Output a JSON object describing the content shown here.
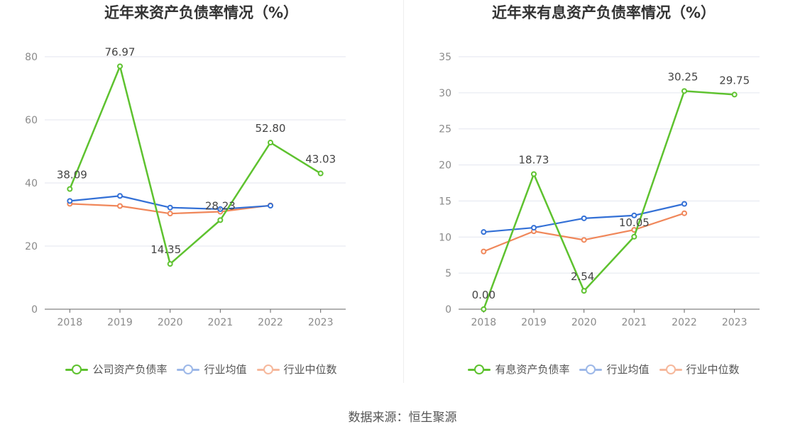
{
  "charts": [
    {
      "title": "近年来资产负债率情况（%）",
      "legend": [
        "公司资产负债率",
        "行业均值",
        "行业中位数"
      ]
    },
    {
      "title": "近年来有息资产负债率情况（%）",
      "legend": [
        "有息资产负债率",
        "行业均值",
        "行业中位数"
      ]
    }
  ],
  "source": "数据来源：恒生聚源",
  "colors": {
    "company": "#5ec22f",
    "mean": "#3370d6",
    "median": "#f0875a"
  },
  "chart_data": [
    {
      "type": "line",
      "title": "近年来资产负债率情况（%）",
      "categories": [
        "2018",
        "2019",
        "2020",
        "2021",
        "2022",
        "2023"
      ],
      "ylim": [
        0,
        80
      ],
      "yticks": [
        0,
        20,
        40,
        60,
        80
      ],
      "grid": true,
      "legend_position": "bottom",
      "series": [
        {
          "name": "公司资产负债率",
          "color": "#5ec22f",
          "values": [
            38.09,
            76.97,
            14.35,
            28.23,
            52.8,
            43.03
          ],
          "labels": [
            "38.09",
            "76.97",
            "14.35",
            "28.23",
            "52.80",
            "43.03"
          ]
        },
        {
          "name": "行业均值",
          "color": "#3370d6",
          "values": [
            34.3,
            35.9,
            32.2,
            31.7,
            32.8,
            null
          ]
        },
        {
          "name": "行业中位数",
          "color": "#f0875a",
          "values": [
            33.4,
            32.7,
            30.3,
            30.9,
            32.9,
            null
          ]
        }
      ]
    },
    {
      "type": "line",
      "title": "近年来有息资产负债率情况（%）",
      "categories": [
        "2018",
        "2019",
        "2020",
        "2021",
        "2022",
        "2023"
      ],
      "ylim": [
        0,
        35
      ],
      "yticks": [
        0,
        5,
        10,
        15,
        20,
        25,
        30,
        35
      ],
      "grid": true,
      "legend_position": "bottom",
      "series": [
        {
          "name": "有息资产负债率",
          "color": "#5ec22f",
          "values": [
            0.0,
            18.73,
            2.54,
            10.05,
            30.25,
            29.75
          ],
          "labels": [
            "0.00",
            "18.73",
            "2.54",
            "10.05",
            "30.25",
            "29.75"
          ]
        },
        {
          "name": "行业均值",
          "color": "#3370d6",
          "values": [
            10.7,
            11.3,
            12.6,
            13.0,
            14.6,
            null
          ]
        },
        {
          "name": "行业中位数",
          "color": "#f0875a",
          "values": [
            8.0,
            10.8,
            9.6,
            11.0,
            13.3,
            null
          ]
        }
      ]
    }
  ]
}
